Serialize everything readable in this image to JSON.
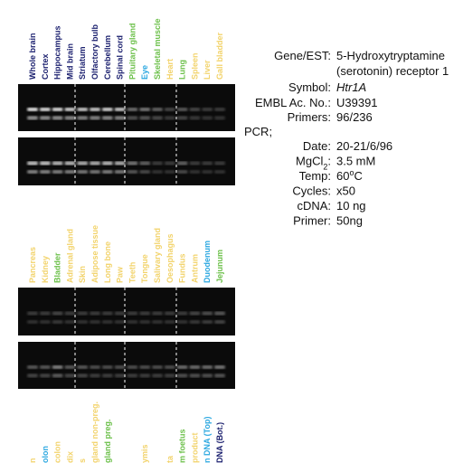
{
  "lanes_top": [
    {
      "label": "Whole brain",
      "color": "#1a1f6e"
    },
    {
      "label": "Cortex",
      "color": "#1a1f6e"
    },
    {
      "label": "Hippocampus",
      "color": "#1a1f6e"
    },
    {
      "label": "Mid brain",
      "color": "#1a1f6e"
    },
    {
      "label": "Striatum",
      "color": "#1a1f6e"
    },
    {
      "label": "Olfactory bulb",
      "color": "#1a1f6e"
    },
    {
      "label": "Cerebellum",
      "color": "#1a1f6e"
    },
    {
      "label": "Spinal cord",
      "color": "#1a1f6e"
    },
    {
      "label": "Pituitary gland",
      "color": "#6cc04a"
    },
    {
      "label": "Eye",
      "color": "#2aa7e0"
    },
    {
      "label": "Skeletal muscle",
      "color": "#6cc04a"
    },
    {
      "label": "Heart",
      "color": "#f2d36b"
    },
    {
      "label": "Lung",
      "color": "#6cc04a"
    },
    {
      "label": "Spleen",
      "color": "#f2d36b"
    },
    {
      "label": "Liver",
      "color": "#f2d36b"
    },
    {
      "label": "Gall bladder",
      "color": "#f2d36b"
    }
  ],
  "lanes_middle": [
    {
      "label": "Pancreas",
      "color": "#f2d36b"
    },
    {
      "label": "Kidney",
      "color": "#f2d36b"
    },
    {
      "label": "Bladder",
      "color": "#6cc04a"
    },
    {
      "label": "Adrenal gland",
      "color": "#f2d36b"
    },
    {
      "label": "Skin",
      "color": "#f2d36b"
    },
    {
      "label": "Adipose tissue",
      "color": "#f2d36b"
    },
    {
      "label": "Long bone",
      "color": "#f2d36b"
    },
    {
      "label": "Paw",
      "color": "#f2d36b"
    },
    {
      "label": "Teeth",
      "color": "#f2d36b"
    },
    {
      "label": "Tongue",
      "color": "#f2d36b"
    },
    {
      "label": "Salivary gland",
      "color": "#f2d36b"
    },
    {
      "label": "Oesophagus",
      "color": "#f2d36b"
    },
    {
      "label": "Fundus",
      "color": "#f2d36b"
    },
    {
      "label": "Antrum",
      "color": "#f2d36b"
    },
    {
      "label": "Duodenum",
      "color": "#2aa7e0"
    },
    {
      "label": "Jejunum",
      "color": "#6cc04a"
    }
  ],
  "lanes_bottom": [
    {
      "label": "n",
      "color": "#f2d36b"
    },
    {
      "label": "olon",
      "color": "#2aa7e0"
    },
    {
      "label": "colon",
      "color": "#f2d36b"
    },
    {
      "label": "dix",
      "color": "#f2d36b"
    },
    {
      "label": "s",
      "color": "#f2d36b"
    },
    {
      "label": "gland non-preg.",
      "color": "#f2d36b"
    },
    {
      "label": "gland preg.",
      "color": "#6cc04a"
    },
    {
      "label": null,
      "color": "#f2d36b"
    },
    {
      "label": null,
      "color": "#f2d36b"
    },
    {
      "label": "ymis",
      "color": "#f2d36b"
    },
    {
      "label": null,
      "color": "#f2d36b"
    },
    {
      "label": "ta",
      "color": "#f2d36b"
    },
    {
      "label": "m foetus",
      "color": "#6cc04a"
    },
    {
      "label": "product",
      "color": "#f2d36b"
    },
    {
      "label": "n DNA (Top)",
      "color": "#2aa7e0"
    },
    {
      "label": "DNA (Bot.)",
      "color": "#1a1f6e"
    }
  ],
  "info": {
    "rows": [
      {
        "label": [
          {
            "text": "Gene/EST:"
          }
        ],
        "value": [
          {
            "text": "5-Hydroxytryptamine"
          }
        ],
        "value2": [
          {
            "text": "(serotonin) receptor 1"
          }
        ]
      },
      {
        "label": [
          {
            "text": "Symbol:"
          }
        ],
        "value": [
          {
            "text": "Htr1A",
            "italic": true
          }
        ]
      },
      {
        "label": [
          {
            "text": "EMBL Ac. No.:"
          }
        ],
        "value": [
          {
            "text": "U39391"
          }
        ]
      },
      {
        "label": [
          {
            "text": "Primers:"
          }
        ],
        "value": [
          {
            "text": "96/236"
          }
        ]
      }
    ],
    "section": "PCR;",
    "pcr_rows": [
      {
        "label": [
          {
            "text": "Date:"
          }
        ],
        "value": [
          {
            "text": "20-21/6/96"
          }
        ]
      },
      {
        "label": [
          {
            "text": "MgCl"
          },
          {
            "text": "2",
            "sub": true
          },
          {
            "text": ":"
          }
        ],
        "value": [
          {
            "text": "3.5 mM"
          }
        ]
      },
      {
        "label": [
          {
            "text": "Temp:"
          }
        ],
        "value": [
          {
            "text": "60"
          },
          {
            "text": "o",
            "sup": true
          },
          {
            "text": "C"
          }
        ]
      },
      {
        "label": [
          {
            "text": "Cycles:"
          }
        ],
        "value": [
          {
            "text": "x50"
          }
        ]
      },
      {
        "label": [
          {
            "text": "cDNA:"
          }
        ],
        "value": [
          {
            "text": "10 ng"
          }
        ]
      },
      {
        "label": [
          {
            "text": "Primer:"
          }
        ],
        "value": [
          {
            "text": "50ng"
          }
        ]
      }
    ]
  }
}
